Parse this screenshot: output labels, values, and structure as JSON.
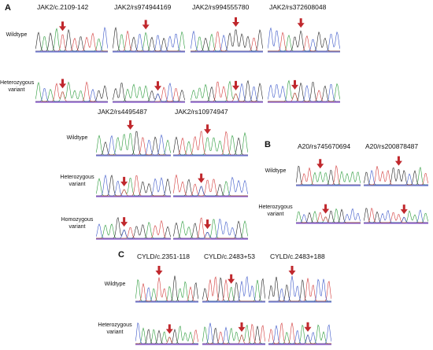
{
  "panels": [
    {
      "label": "A",
      "groups": [
        {
          "columns": [
            "JAK2/c.2109-142",
            "JAK2/rs974944169",
            "JAK2/rs994555780",
            "JAK2/rs372608048"
          ],
          "rows": [
            "Wildtype",
            "Heterozygous variant"
          ]
        },
        {
          "columns": [
            "JAK2/rs4495487",
            "JAK2/rs10974947"
          ],
          "rows": [
            "Wildtype",
            "Heterozygous variant",
            "Homozygous variant"
          ]
        }
      ]
    },
    {
      "label": "B",
      "groups": [
        {
          "columns": [
            "A20/rs745670694",
            "A20/rs200878487"
          ],
          "rows": [
            "Wildtype",
            "Heterozygous variant"
          ]
        }
      ]
    },
    {
      "label": "C",
      "groups": [
        {
          "columns": [
            "CYLD/c.2351-118",
            "CYLD/c.2483+53",
            "CYLD/c.2483+188"
          ],
          "rows": [
            "Wildtype",
            "Heterozygous variant"
          ]
        }
      ]
    }
  ]
}
